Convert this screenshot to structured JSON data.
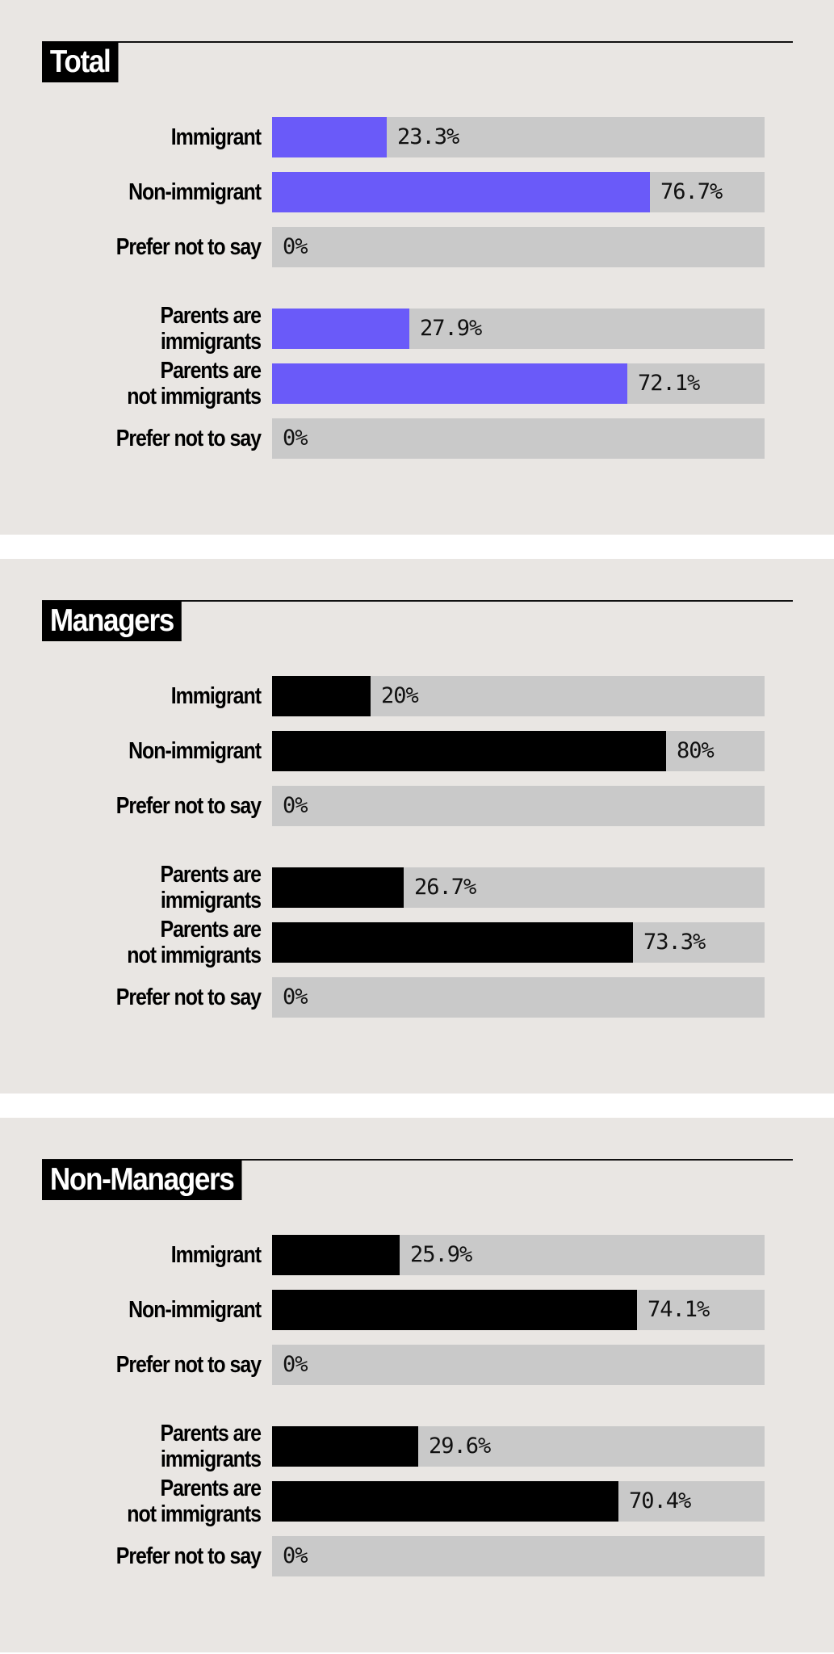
{
  "colors": {
    "panel_background": "#e9e6e3",
    "track": "#c9c9c9",
    "highlight_bar": "#6a5af9",
    "bar": "#000000"
  },
  "chart_data": [
    {
      "type": "bar",
      "orientation": "horizontal",
      "title": "Total",
      "bar_color": "#6a5af9",
      "xlim": [
        0,
        100
      ],
      "unit": "%",
      "categories": [
        "Immigrant",
        "Non-immigrant",
        "Prefer not to say",
        "Parents are immigrants",
        "Parents are not immigrants",
        "Prefer not to say"
      ],
      "label_lines": [
        [
          "Immigrant"
        ],
        [
          "Non-immigrant"
        ],
        [
          "Prefer not to say"
        ],
        [
          "Parents are",
          "immigrants"
        ],
        [
          "Parents are",
          "not immigrants"
        ],
        [
          "Prefer not to say"
        ]
      ],
      "values": [
        23.3,
        76.7,
        0,
        27.9,
        72.1,
        0
      ],
      "value_labels": [
        "23.3%",
        "76.7%",
        "0%",
        "27.9%",
        "72.1%",
        "0%"
      ]
    },
    {
      "type": "bar",
      "orientation": "horizontal",
      "title": "Managers",
      "bar_color": "#000000",
      "xlim": [
        0,
        100
      ],
      "unit": "%",
      "categories": [
        "Immigrant",
        "Non-immigrant",
        "Prefer not to say",
        "Parents are immigrants",
        "Parents are not immigrants",
        "Prefer not to say"
      ],
      "label_lines": [
        [
          "Immigrant"
        ],
        [
          "Non-immigrant"
        ],
        [
          "Prefer not to say"
        ],
        [
          "Parents are",
          "immigrants"
        ],
        [
          "Parents are",
          "not immigrants"
        ],
        [
          "Prefer not to say"
        ]
      ],
      "values": [
        20,
        80,
        0,
        26.7,
        73.3,
        0
      ],
      "value_labels": [
        "20%",
        "80%",
        "0%",
        "26.7%",
        "73.3%",
        "0%"
      ]
    },
    {
      "type": "bar",
      "orientation": "horizontal",
      "title": "Non-Managers",
      "bar_color": "#000000",
      "xlim": [
        0,
        100
      ],
      "unit": "%",
      "categories": [
        "Immigrant",
        "Non-immigrant",
        "Prefer not to say",
        "Parents are immigrants",
        "Parents are not immigrants",
        "Prefer not to say"
      ],
      "label_lines": [
        [
          "Immigrant"
        ],
        [
          "Non-immigrant"
        ],
        [
          "Prefer not to say"
        ],
        [
          "Parents are",
          "immigrants"
        ],
        [
          "Parents are",
          "not immigrants"
        ],
        [
          "Prefer not to say"
        ]
      ],
      "values": [
        25.9,
        74.1,
        0,
        29.6,
        70.4,
        0
      ],
      "value_labels": [
        "25.9%",
        "74.1%",
        "0%",
        "29.6%",
        "70.4%",
        "0%"
      ]
    }
  ]
}
